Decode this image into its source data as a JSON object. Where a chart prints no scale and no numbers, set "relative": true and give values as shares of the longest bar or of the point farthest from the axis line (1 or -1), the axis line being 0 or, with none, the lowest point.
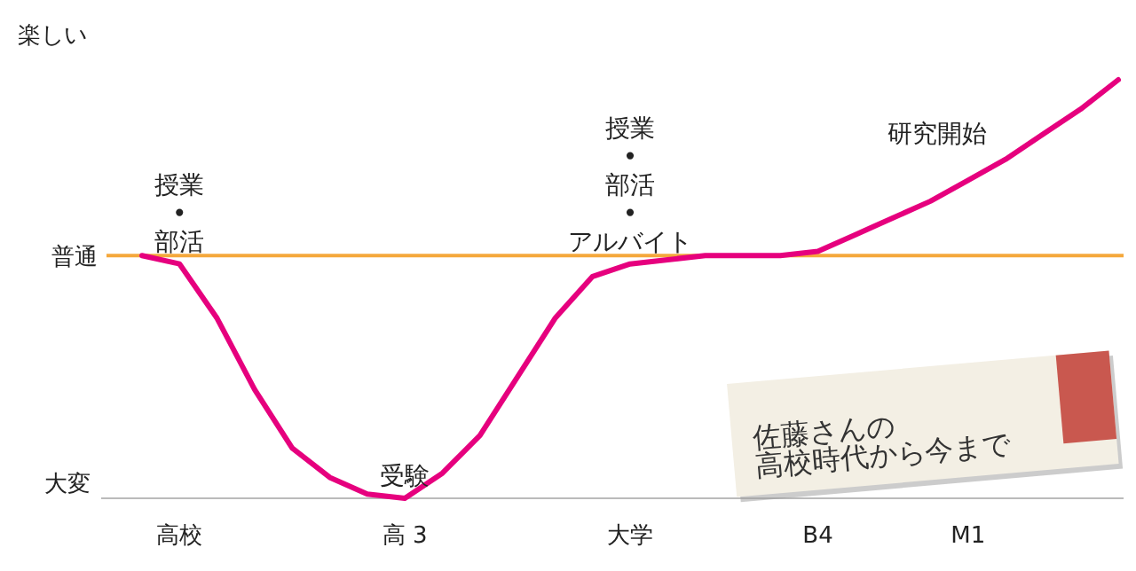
{
  "chart_data": {
    "type": "line",
    "relative": true,
    "grid": false,
    "marker": "none",
    "categories": [
      null,
      "高校",
      null,
      null,
      null,
      null,
      null,
      "高 3",
      null,
      null,
      null,
      null,
      null,
      "大学",
      null,
      null,
      null,
      null,
      "B4",
      null,
      null,
      null,
      "M1",
      null,
      null,
      null,
      null
    ],
    "series": [
      {
        "color": "#e6007e",
        "values": [
          0.58,
          0.56,
          0.43,
          0.26,
          0.12,
          0.05,
          0.01,
          0,
          0.06,
          0.15,
          0.29,
          0.43,
          0.53,
          0.56,
          0.57,
          0.58,
          0.58,
          0.58,
          0.59,
          0.63,
          0.67,
          0.71,
          0.76,
          0.81,
          0.87,
          0.93,
          1
        ]
      }
    ],
    "ref_lines": [
      {
        "axis": "y",
        "value": 0.58,
        "label": "普通",
        "color": "#f5a83c"
      }
    ],
    "annotations": [
      "楽しい",
      "大変",
      {
        "text": "授業\n•\n部活",
        "x": "高校",
        "y": 0.56
      },
      {
        "text": "受験",
        "x": "高 3",
        "y": 0
      },
      {
        "text": "授業\n•\n部活\n•\nアルバイト",
        "x": "大学",
        "y": 0.56
      },
      "研究開始",
      "佐藤さんの\n高校時代から今まで"
    ]
  }
}
